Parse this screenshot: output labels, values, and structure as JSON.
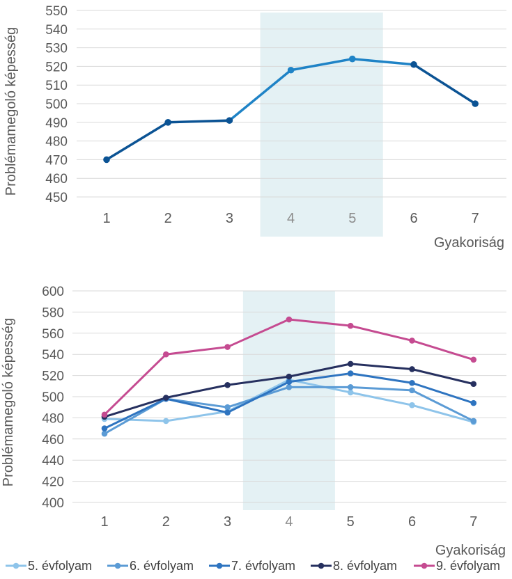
{
  "chart_data": [
    {
      "type": "line",
      "title": "",
      "xlabel": "Gyakoriság",
      "ylabel": "Problémamegoló képesség",
      "categories": [
        "1",
        "2",
        "3",
        "4",
        "5",
        "6",
        "7"
      ],
      "ylim": [
        450,
        550
      ],
      "yticks": [
        450,
        460,
        470,
        480,
        490,
        500,
        510,
        520,
        530,
        540,
        550
      ],
      "highlight_categories": [
        "4",
        "5"
      ],
      "highlight_color": "#e4f1f4",
      "grid": true,
      "legend": "none",
      "series": [
        {
          "values": [
            470,
            490,
            491,
            518,
            524,
            521,
            500
          ],
          "color": "#0b5394",
          "highlight_color": "#1f83c6"
        }
      ]
    },
    {
      "type": "line",
      "title": "",
      "xlabel": "Gyakoriság",
      "ylabel": "Problémamegoló képesség",
      "categories": [
        "1",
        "2",
        "3",
        "4",
        "5",
        "6",
        "7"
      ],
      "ylim": [
        400,
        600
      ],
      "yticks": [
        400,
        420,
        440,
        460,
        480,
        500,
        520,
        540,
        560,
        580,
        600
      ],
      "highlight_categories": [
        "4"
      ],
      "highlight_color": "#e4f1f4",
      "grid": true,
      "legend": "bottom",
      "series": [
        {
          "name": "5. évfolyam",
          "values": [
            479,
            477,
            486,
            516,
            504,
            492,
            476
          ],
          "color": "#8ec4ea"
        },
        {
          "name": "6. évfolyam",
          "values": [
            465,
            498,
            490,
            509,
            509,
            506,
            477
          ],
          "color": "#5b9bd5"
        },
        {
          "name": "7. évfolyam",
          "values": [
            470,
            498,
            485,
            514,
            522,
            513,
            494
          ],
          "color": "#2e74c0"
        },
        {
          "name": "8. évfolyam",
          "values": [
            481,
            499,
            511,
            519,
            531,
            526,
            512
          ],
          "color": "#26305f"
        },
        {
          "name": "9. évfolyam",
          "values": [
            483,
            540,
            547,
            573,
            567,
            553,
            535
          ],
          "color": "#c54b91"
        }
      ]
    }
  ]
}
